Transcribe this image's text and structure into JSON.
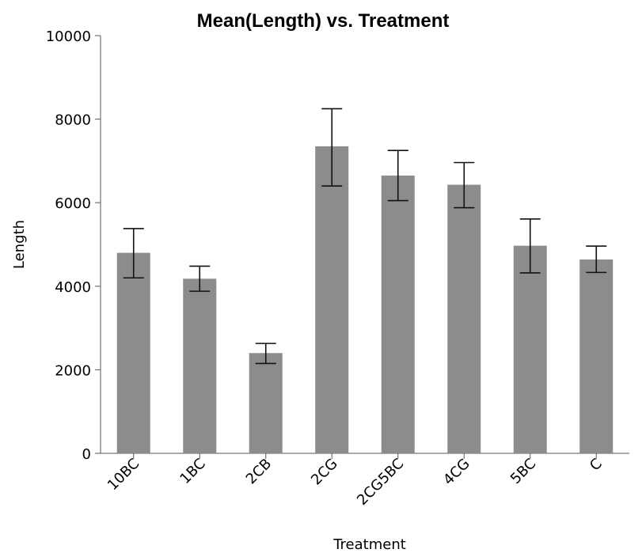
{
  "chart_data": {
    "type": "bar",
    "title": "Mean(Length) vs. Treatment",
    "xlabel": "Treatment",
    "ylabel": "Length",
    "ylim": [
      0,
      10000
    ],
    "yticks": [
      0,
      2000,
      4000,
      6000,
      8000,
      10000
    ],
    "categories": [
      "10BC",
      "1BC",
      "2CB",
      "2CG",
      "2CG5BC",
      "4CG",
      "5BC",
      "C"
    ],
    "values": [
      4800,
      4180,
      2400,
      7350,
      6650,
      6430,
      4970,
      4640
    ],
    "error_low": [
      4200,
      3880,
      2150,
      6400,
      6050,
      5880,
      4320,
      4330
    ],
    "error_high": [
      5380,
      4480,
      2630,
      8250,
      7250,
      6960,
      5610,
      4960
    ],
    "grid": false,
    "legend": "none",
    "colors": {
      "bar": "#8c8c8c",
      "error_bar": "#111111",
      "axis": "#555555"
    }
  }
}
